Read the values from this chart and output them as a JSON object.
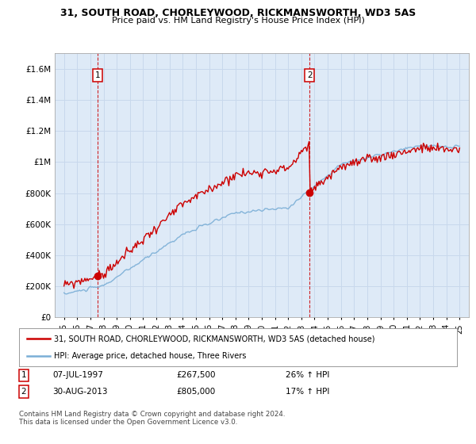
{
  "title": "31, SOUTH ROAD, CHORLEYWOOD, RICKMANSWORTH, WD3 5AS",
  "subtitle": "Price paid vs. HM Land Registry's House Price Index (HPI)",
  "hpi_label": "HPI: Average price, detached house, Three Rivers",
  "property_label": "31, SOUTH ROAD, CHORLEYWOOD, RICKMANSWORTH, WD3 5AS (detached house)",
  "transaction1_date": "07-JUL-1997",
  "transaction1_price": 267500,
  "transaction1_note": "26% ↑ HPI",
  "transaction2_date": "30-AUG-2013",
  "transaction2_price": 805000,
  "transaction2_note": "17% ↑ HPI",
  "footer": "Contains HM Land Registry data © Crown copyright and database right 2024.\nThis data is licensed under the Open Government Licence v3.0.",
  "ylim": [
    0,
    1700000
  ],
  "yticks": [
    0,
    200000,
    400000,
    600000,
    800000,
    1000000,
    1200000,
    1400000,
    1600000
  ],
  "ytick_labels": [
    "£0",
    "£200K",
    "£400K",
    "£600K",
    "£800K",
    "£1M",
    "£1.2M",
    "£1.4M",
    "£1.6M"
  ],
  "hpi_color": "#7aaed6",
  "price_color": "#cc0000",
  "marker_color": "#cc0000",
  "dashed_line_color": "#cc0000",
  "background_color": "#deeaf7",
  "grid_color": "#c8d8ec",
  "x_start_year": 1995,
  "x_end_year": 2025
}
